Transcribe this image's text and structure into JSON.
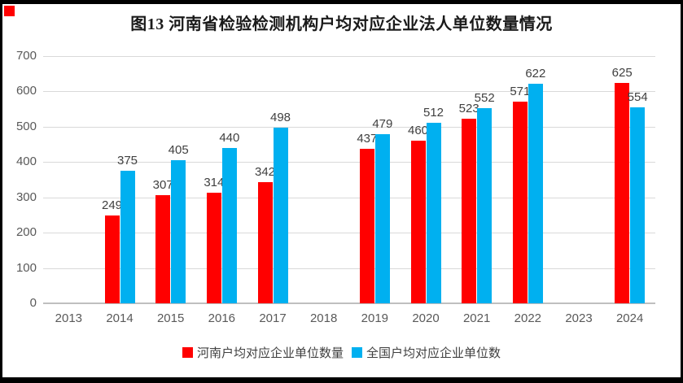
{
  "title": "图13  河南省检验检测机构户均对应企业法人单位数量情况",
  "colors": {
    "henan_bar": "#ff0000",
    "national_bar": "#00b0f0",
    "gridline": "#d9d9d9",
    "axis_line": "#bfbfbf",
    "tick_text": "#595959",
    "value_text": "#404040",
    "title_text": "#1a1a1a",
    "border": "#000000",
    "marker": "#ff0000"
  },
  "chart_data": {
    "type": "bar",
    "title": "图13  河南省检验检测机构户均对应企业法人单位数量情况",
    "categories": [
      "2013",
      "2014",
      "2015",
      "2016",
      "2017",
      "2018",
      "2019",
      "2020",
      "2021",
      "2022",
      "2023",
      "2024"
    ],
    "series": [
      {
        "name": "河南户均对应企业单位数量",
        "color": "#ff0000",
        "values": [
          null,
          249,
          307,
          314,
          342,
          null,
          437,
          460,
          523,
          571,
          null,
          625
        ]
      },
      {
        "name": "全国户均对应企业单位数",
        "color": "#00b0f0",
        "values": [
          null,
          375,
          405,
          440,
          498,
          null,
          479,
          512,
          552,
          622,
          null,
          554
        ]
      }
    ],
    "xlabel": "",
    "ylabel": "",
    "ylim": [
      0,
      700
    ],
    "yticks": [
      0,
      100,
      200,
      300,
      400,
      500,
      600,
      700
    ],
    "grid": true,
    "legend_position": "bottom",
    "data_labels": true
  }
}
